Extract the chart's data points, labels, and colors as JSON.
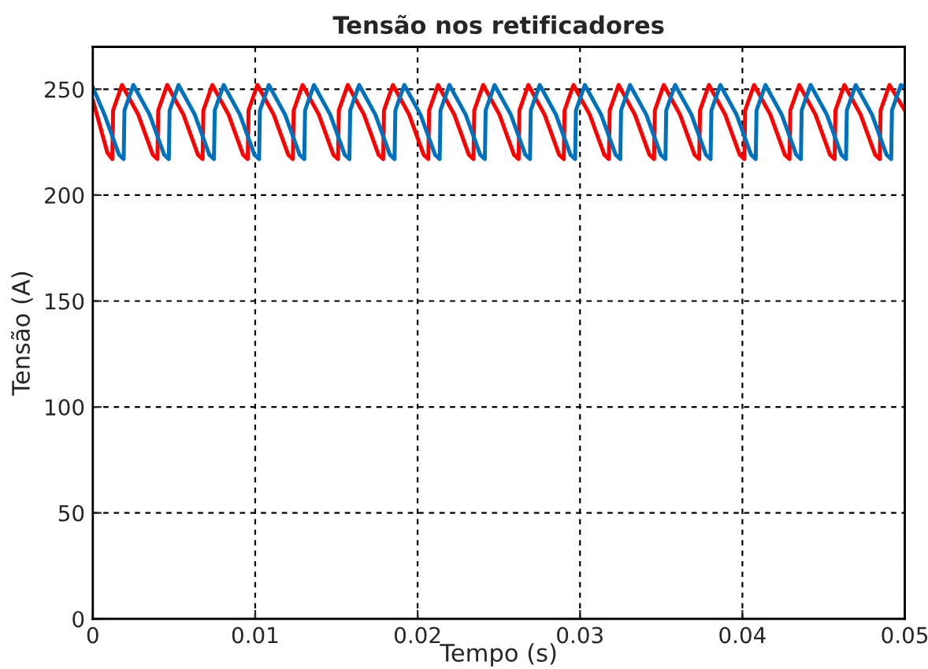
{
  "chart_data": {
    "type": "line",
    "title": "Tensão nos retificadores",
    "xlabel": "Tempo (s)",
    "ylabel": "Tensão (A)",
    "xlim": [
      0,
      0.05
    ],
    "xticks": [
      0,
      0.01,
      0.02,
      0.03,
      0.04,
      0.05
    ],
    "ylim": [
      0,
      270
    ],
    "yticks": [
      0,
      50,
      100,
      150,
      200,
      250
    ],
    "grid": true,
    "line_style": "solid",
    "series": [
      {
        "color": "#ff0000",
        "x": [
          0,
          0.0009,
          0.0012,
          0.00125,
          0.0018,
          0.0028,
          0.0037,
          0.00398,
          0.00403,
          0.00458,
          0.00558,
          0.00648,
          0.00676,
          0.00681,
          0.00736,
          0.00836,
          0.00926,
          0.00954,
          0.00959,
          0.01014,
          0.01114,
          0.01204,
          0.01232,
          0.01237,
          0.01292,
          0.01392,
          0.01482,
          0.0151,
          0.01515,
          0.0157,
          0.0167,
          0.0176,
          0.01788,
          0.01793,
          0.01848,
          0.01948,
          0.02038,
          0.02066,
          0.02071,
          0.02126,
          0.02226,
          0.02316,
          0.02344,
          0.02349,
          0.02404,
          0.02504,
          0.02594,
          0.02622,
          0.02627,
          0.02682,
          0.02782,
          0.02872,
          0.029,
          0.02905,
          0.0296,
          0.0306,
          0.0315,
          0.03178,
          0.03183,
          0.03238,
          0.03338,
          0.03428,
          0.03456,
          0.03461,
          0.03516,
          0.03616,
          0.03706,
          0.03734,
          0.03739,
          0.03794,
          0.03894,
          0.03984,
          0.04012,
          0.04017,
          0.04072,
          0.04172,
          0.04262,
          0.0429,
          0.04295,
          0.0435,
          0.0445,
          0.0454,
          0.04568,
          0.04573,
          0.04628,
          0.04728,
          0.04818,
          0.04846,
          0.04851,
          0.04906,
          0.05
        ],
        "values": [
          245,
          220,
          217,
          240,
          252,
          238,
          219,
          217,
          240,
          252,
          238,
          219,
          217,
          240,
          252,
          238,
          219,
          217,
          240,
          252,
          238,
          219,
          217,
          240,
          252,
          238,
          219,
          217,
          240,
          252,
          238,
          219,
          217,
          240,
          252,
          238,
          219,
          217,
          240,
          252,
          238,
          219,
          217,
          240,
          252,
          238,
          219,
          217,
          240,
          252,
          238,
          219,
          217,
          240,
          252,
          238,
          219,
          217,
          240,
          252,
          238,
          219,
          217,
          240,
          252,
          238,
          219,
          217,
          240,
          252,
          238,
          219,
          217,
          240,
          252,
          238,
          219,
          217,
          240,
          252,
          238,
          219,
          217,
          240,
          252,
          238,
          219,
          217,
          240,
          252,
          240
        ]
      },
      {
        "color": "#0072bd",
        "x": [
          0,
          0.00072,
          0.00162,
          0.0019,
          0.00195,
          0.0025,
          0.0035,
          0.0044,
          0.00468,
          0.00473,
          0.00528,
          0.00628,
          0.00718,
          0.00746,
          0.00751,
          0.00806,
          0.00906,
          0.00996,
          0.01024,
          0.01029,
          0.01084,
          0.01184,
          0.01274,
          0.01302,
          0.01307,
          0.01362,
          0.01462,
          0.01552,
          0.0158,
          0.01585,
          0.0164,
          0.0174,
          0.0183,
          0.01858,
          0.01863,
          0.01918,
          0.02018,
          0.02108,
          0.02136,
          0.02141,
          0.02196,
          0.02296,
          0.02386,
          0.02414,
          0.02419,
          0.02474,
          0.02574,
          0.02664,
          0.02692,
          0.02697,
          0.02752,
          0.02852,
          0.02942,
          0.0297,
          0.02975,
          0.0303,
          0.0313,
          0.0322,
          0.03248,
          0.03253,
          0.03308,
          0.03408,
          0.03498,
          0.03526,
          0.03531,
          0.03586,
          0.03686,
          0.03776,
          0.03804,
          0.03809,
          0.03864,
          0.03964,
          0.04054,
          0.04082,
          0.04087,
          0.04142,
          0.04242,
          0.04332,
          0.0436,
          0.04365,
          0.0442,
          0.0452,
          0.0461,
          0.04638,
          0.04643,
          0.04698,
          0.04798,
          0.04888,
          0.04916,
          0.04921,
          0.04976,
          0.05
        ],
        "values": [
          251,
          238,
          219,
          217,
          240,
          252,
          238,
          219,
          217,
          240,
          252,
          238,
          219,
          217,
          240,
          252,
          238,
          219,
          217,
          240,
          252,
          238,
          219,
          217,
          240,
          252,
          238,
          219,
          217,
          240,
          252,
          238,
          219,
          217,
          240,
          252,
          238,
          219,
          217,
          240,
          252,
          238,
          219,
          217,
          240,
          252,
          238,
          219,
          217,
          240,
          252,
          238,
          219,
          217,
          240,
          252,
          238,
          219,
          217,
          240,
          252,
          238,
          219,
          217,
          240,
          252,
          238,
          219,
          217,
          240,
          252,
          238,
          219,
          217,
          240,
          252,
          238,
          219,
          217,
          240,
          252,
          238,
          219,
          217,
          240,
          252,
          238,
          219,
          217,
          240,
          252,
          251
        ]
      }
    ]
  }
}
